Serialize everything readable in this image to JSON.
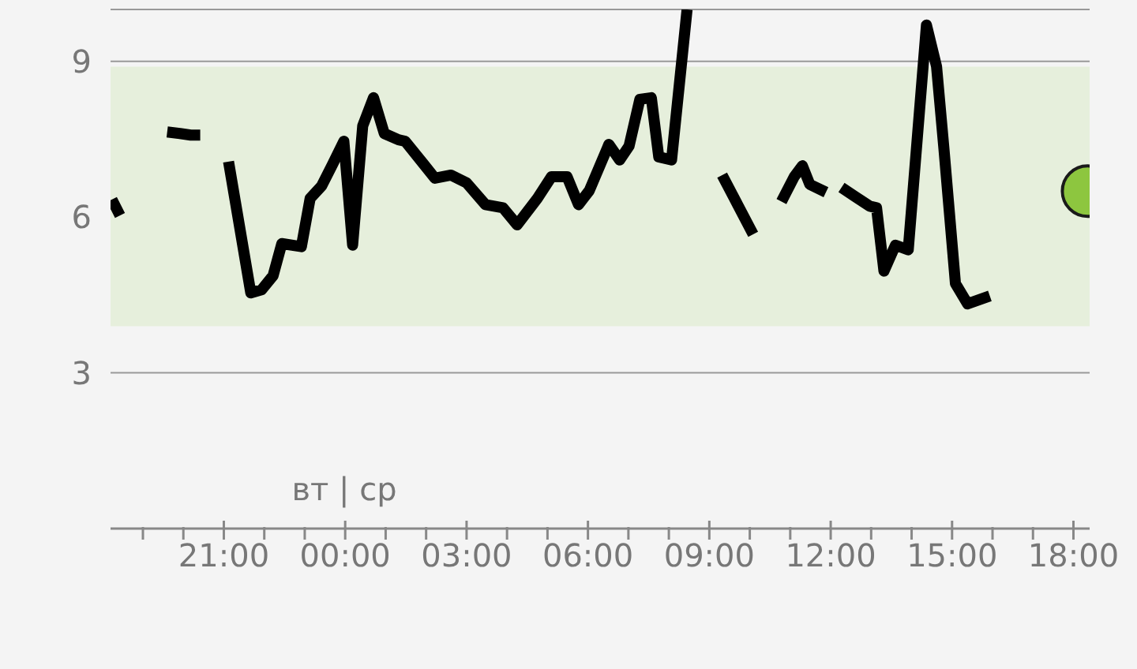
{
  "chart_data": {
    "type": "line",
    "xlim": [
      "--01-02T18:12",
      "--01-03T18:24"
    ],
    "xticks": [
      {
        "value": "--01-02T19:00",
        "label": null
      },
      {
        "value": "--01-02T20:00",
        "label": null
      },
      {
        "value": "--01-02T21:00",
        "label": "21:00"
      },
      {
        "value": "--01-02T22:00",
        "label": null
      },
      {
        "value": "--01-02T23:00",
        "label": null
      },
      {
        "value": "--01-03T00:00",
        "label": "00:00"
      },
      {
        "value": "--01-03T01:00",
        "label": null
      },
      {
        "value": "--01-03T02:00",
        "label": null
      },
      {
        "value": "--01-03T03:00",
        "label": "03:00"
      },
      {
        "value": "--01-03T04:00",
        "label": null
      },
      {
        "value": "--01-03T05:00",
        "label": null
      },
      {
        "value": "--01-03T06:00",
        "label": "06:00"
      },
      {
        "value": "--01-03T07:00",
        "label": null
      },
      {
        "value": "--01-03T08:00",
        "label": null
      },
      {
        "value": "--01-03T09:00",
        "label": "09:00"
      },
      {
        "value": "--01-03T10:00",
        "label": null
      },
      {
        "value": "--01-03T11:00",
        "label": null
      },
      {
        "value": "--01-03T12:00",
        "label": "12:00"
      },
      {
        "value": "--01-03T13:00",
        "label": null
      },
      {
        "value": "--01-03T14:00",
        "label": null
      },
      {
        "value": "--01-03T15:00",
        "label": "15:00"
      },
      {
        "value": "--01-03T16:00",
        "label": null
      },
      {
        "value": "--01-03T17:00",
        "label": null
      },
      {
        "value": "--01-03T18:00",
        "label": "18:00"
      }
    ],
    "ylim": [
      0,
      10
    ],
    "yticks": [
      3,
      6,
      9
    ],
    "grid": "y",
    "bands": [
      {
        "axis": "y",
        "from": 3.9,
        "to": 8.9,
        "color": "#e6efdc"
      }
    ],
    "annotations": [
      "вт | ср"
    ],
    "series": [
      {
        "color": "#000000",
        "marker": "none",
        "x": [
          "--01-02T18:14",
          "--01-02T18:26",
          "--01-02T19:00",
          "--01-02T19:36",
          "--01-02T19:55",
          "--01-02T20:11",
          "--01-02T20:25",
          "--01-02T20:48",
          "--01-02T21:07",
          "--01-02T21:40",
          "--01-02T21:56",
          "--01-02T22:13",
          "--01-02T22:26",
          "--01-02T22:55",
          "--01-02T23:08",
          "--01-02T23:25",
          "--01-02T23:41",
          "--01-02T23:58",
          "--01-03T00:11",
          "--01-03T00:26",
          "--01-03T00:42",
          "--01-03T00:58",
          "--01-03T01:19",
          "--01-03T01:29",
          "--01-03T01:57",
          "--01-03T02:13",
          "--01-03T02:37",
          "--01-03T03:00",
          "--01-03T03:28",
          "--01-03T03:54",
          "--01-03T04:15",
          "--01-03T04:45",
          "--01-03T05:06",
          "--01-03T05:29",
          "--01-03T05:46",
          "--01-03T06:02",
          "--01-03T06:31",
          "--01-03T06:47",
          "--01-03T07:01",
          "--01-03T07:17",
          "--01-03T07:34",
          "--01-03T07:45",
          "--01-03T08:04",
          "--01-03T08:27",
          "--01-03T08:54",
          "--01-03T09:19",
          "--01-03T09:42",
          "--01-03T10:05",
          "--01-03T10:24",
          "--01-03T10:47",
          "--01-03T11:06",
          "--01-03T11:18",
          "--01-03T11:29",
          "--01-03T11:53",
          "--01-03T12:06",
          "--01-03T12:16",
          "--01-03T12:37",
          "--01-03T12:58",
          "--01-03T13:08",
          "--01-03T13:19",
          "--01-03T13:36",
          "--01-03T13:55",
          "--01-03T14:22",
          "--01-03T14:37",
          "--01-03T14:48",
          "--01-03T15:05",
          "--01-03T15:23",
          "--01-03T15:56"
        ],
        "values": [
          6.34,
          6.03,
          null,
          7.64,
          7.61,
          7.58,
          7.58,
          null,
          7.07,
          4.54,
          4.6,
          4.87,
          5.49,
          5.43,
          6.36,
          6.6,
          7.01,
          7.46,
          5.46,
          7.76,
          8.3,
          7.61,
          7.49,
          7.46,
          7.01,
          6.75,
          6.81,
          6.66,
          6.24,
          6.18,
          5.85,
          6.36,
          6.78,
          6.78,
          6.24,
          6.51,
          7.4,
          7.1,
          7.37,
          8.27,
          8.3,
          7.16,
          7.1,
          10,
          null,
          6.81,
          6.24,
          5.67,
          null,
          6.3,
          6.78,
          6.99,
          6.63,
          6.48,
          null,
          6.57,
          6.39,
          6.21,
          6.18,
          4.96,
          5.46,
          5.37,
          9.7,
          8.9,
          7.31,
          4.72,
          4.33,
          4.48
        ]
      },
      {
        "type": "scatter",
        "color": "#8dc63f",
        "marker": "circle",
        "x": [
          "--01-03T18:21"
        ],
        "values": [
          6.5
        ]
      }
    ]
  }
}
